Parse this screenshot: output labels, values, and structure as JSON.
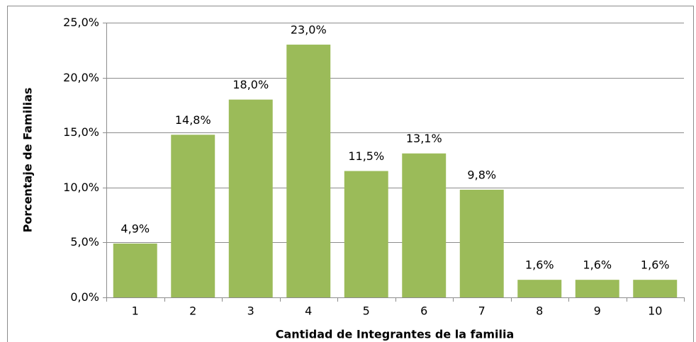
{
  "chart_data": {
    "type": "bar",
    "categories": [
      "1",
      "2",
      "3",
      "4",
      "5",
      "6",
      "7",
      "8",
      "9",
      "10"
    ],
    "values": [
      4.9,
      14.8,
      18.0,
      23.0,
      11.5,
      13.1,
      9.8,
      1.6,
      1.6,
      1.6
    ],
    "value_labels": [
      "4,9%",
      "14,8%",
      "18,0%",
      "23,0%",
      "11,5%",
      "13,1%",
      "9,8%",
      "1,6%",
      "1,6%",
      "1,6%"
    ],
    "color": "#9bbb59",
    "ylim": [
      0,
      25
    ],
    "yticks": [
      {
        "value": 0,
        "label": "0,0%"
      },
      {
        "value": 5,
        "label": "5,0%"
      },
      {
        "value": 10,
        "label": "10,0%"
      },
      {
        "value": 15,
        "label": "15,0%"
      },
      {
        "value": 20,
        "label": "20,0%"
      },
      {
        "value": 25,
        "label": "25,0%"
      }
    ],
    "grid": true,
    "x_label": "Cantidad de Integrantes de la familia",
    "y_label": "Porcentaje de Familias"
  }
}
